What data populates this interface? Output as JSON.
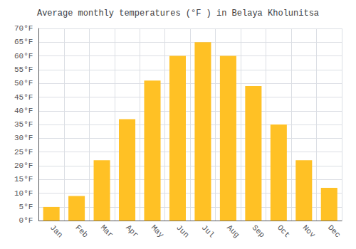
{
  "chart_data": {
    "type": "bar",
    "title": "Average monthly temperatures (°F ) in Belaya Kholunitsa",
    "categories": [
      "Jan",
      "Feb",
      "Mar",
      "Apr",
      "May",
      "Jun",
      "Jul",
      "Aug",
      "Sep",
      "Oct",
      "Nov",
      "Dec"
    ],
    "values": [
      5,
      9,
      22,
      37,
      51,
      60,
      65,
      60,
      49,
      35,
      22,
      12
    ],
    "color": "#FFC125",
    "ylim": [
      0,
      70
    ],
    "yticks": [
      {
        "value": 0,
        "label": "0°F"
      },
      {
        "value": 5,
        "label": "5°F"
      },
      {
        "value": 10,
        "label": "10°F"
      },
      {
        "value": 15,
        "label": "15°F"
      },
      {
        "value": 20,
        "label": "20°F"
      },
      {
        "value": 25,
        "label": "25°F"
      },
      {
        "value": 30,
        "label": "30°F"
      },
      {
        "value": 35,
        "label": "35°F"
      },
      {
        "value": 40,
        "label": "40°F"
      },
      {
        "value": 45,
        "label": "45°F"
      },
      {
        "value": 50,
        "label": "50°F"
      },
      {
        "value": 55,
        "label": "55°F"
      },
      {
        "value": 60,
        "label": "60°F"
      },
      {
        "value": 65,
        "label": "65°F"
      },
      {
        "value": 70,
        "label": "70°F"
      }
    ],
    "grid": true
  }
}
